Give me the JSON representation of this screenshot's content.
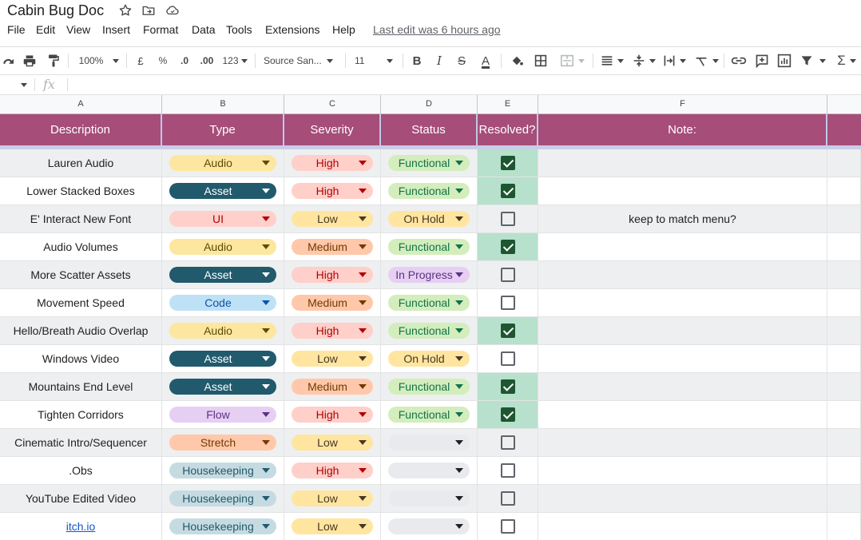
{
  "document": {
    "title": "Cabin Bug Doc",
    "last_edit": "Last edit was 6 hours ago"
  },
  "title_icons": [
    "star-icon",
    "move-to-folder-icon",
    "cloud-status-icon"
  ],
  "menu": [
    "File",
    "Edit",
    "View",
    "Insert",
    "Format",
    "Data",
    "Tools",
    "Extensions",
    "Help"
  ],
  "toolbar": {
    "zoom": "100%",
    "currency": "£",
    "percent": "%",
    "decrease_decimal": ".0",
    "increase_decimal": ".00",
    "more_formats": "123",
    "font": "Source San...",
    "font_size": "11",
    "bold": "B",
    "italic": "I",
    "strikethrough": "S",
    "text_color": "A"
  },
  "formula_bar": {
    "fx": "fx",
    "value": ""
  },
  "columns": [
    "A",
    "B",
    "C",
    "D",
    "E",
    "F"
  ],
  "headers": [
    "Description",
    "Type",
    "Severity",
    "Status",
    "Resolved?",
    "Note:"
  ],
  "chip_styles": {
    "Audio": {
      "bg": "#fde69f",
      "fg": "#5c4a00"
    },
    "Asset": {
      "bg": "#215a6c",
      "fg": "#ffffff"
    },
    "UI": {
      "bg": "#ffcfc9",
      "fg": "#b10202"
    },
    "Code": {
      "bg": "#bfe1f6",
      "fg": "#0a53a8"
    },
    "Flow": {
      "bg": "#e6cff2",
      "fg": "#5a3286"
    },
    "Stretch": {
      "bg": "#ffc8aa",
      "fg": "#753800"
    },
    "Housekeeping": {
      "bg": "#c6dbe1",
      "fg": "#215a6c"
    },
    "High": {
      "bg": "#ffcfc9",
      "fg": "#b10202"
    },
    "Low": {
      "bg": "#ffe5a0",
      "fg": "#473821"
    },
    "Medium": {
      "bg": "#ffc8aa",
      "fg": "#753800"
    },
    "Functional": {
      "bg": "#d4edbc",
      "fg": "#11734b"
    },
    "On Hold": {
      "bg": "#ffe5a0",
      "fg": "#473821"
    },
    "In Progress": {
      "bg": "#e6cff2",
      "fg": "#5a3286"
    },
    "": {
      "bg": "#e8eaed",
      "fg": "#3c4043"
    }
  },
  "rows": [
    {
      "description": "Lauren Audio",
      "type": "Audio",
      "severity": "High",
      "status": "Functional",
      "resolved": true,
      "note": ""
    },
    {
      "description": "Lower Stacked Boxes",
      "type": "Asset",
      "severity": "High",
      "status": "Functional",
      "resolved": true,
      "note": ""
    },
    {
      "description": "E' Interact New Font",
      "type": "UI",
      "severity": "Low",
      "status": "On Hold",
      "resolved": false,
      "note": "keep to match menu?"
    },
    {
      "description": "Audio Volumes",
      "type": "Audio",
      "severity": "Medium",
      "status": "Functional",
      "resolved": true,
      "note": ""
    },
    {
      "description": "More Scatter Assets",
      "type": "Asset",
      "severity": "High",
      "status": "In Progress",
      "resolved": false,
      "note": ""
    },
    {
      "description": "Movement Speed",
      "type": "Code",
      "severity": "Medium",
      "status": "Functional",
      "resolved": false,
      "note": ""
    },
    {
      "description": "Hello/Breath Audio Overlap",
      "type": "Audio",
      "severity": "High",
      "status": "Functional",
      "resolved": true,
      "note": ""
    },
    {
      "description": "Windows Video",
      "type": "Asset",
      "severity": "Low",
      "status": "On Hold",
      "resolved": false,
      "note": ""
    },
    {
      "description": "Mountains End Level",
      "type": "Asset",
      "severity": "Medium",
      "status": "Functional",
      "resolved": true,
      "note": ""
    },
    {
      "description": "Tighten Corridors",
      "type": "Flow",
      "severity": "High",
      "status": "Functional",
      "resolved": true,
      "note": ""
    },
    {
      "description": "Cinematic Intro/Sequencer",
      "type": "Stretch",
      "severity": "Low",
      "status": "",
      "resolved": false,
      "note": ""
    },
    {
      "description": ".Obs",
      "type": "Housekeeping",
      "severity": "High",
      "status": "",
      "resolved": false,
      "note": ""
    },
    {
      "description": "YouTube Edited Video",
      "type": "Housekeeping",
      "severity": "Low",
      "status": "",
      "resolved": false,
      "note": ""
    },
    {
      "description": "itch.io",
      "type": "Housekeeping",
      "severity": "Low",
      "status": "",
      "resolved": false,
      "note": "",
      "link": true
    }
  ]
}
